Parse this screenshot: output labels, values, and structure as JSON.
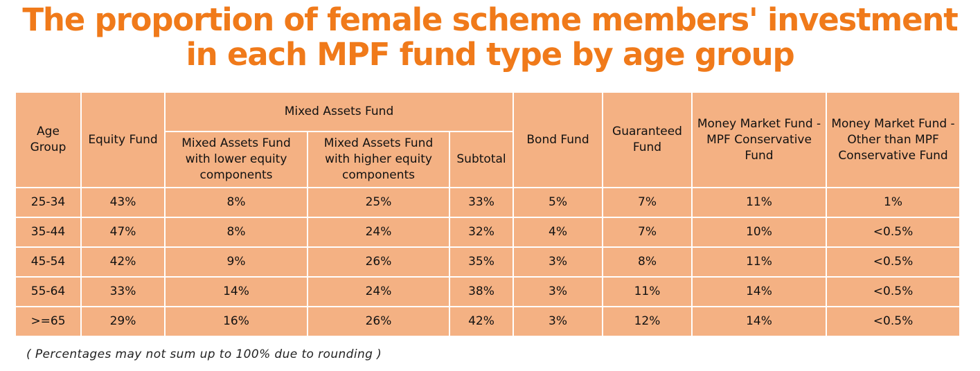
{
  "title": {
    "line1": "The proportion of female scheme members' investment",
    "line2": "in each MPF fund type by age group"
  },
  "colors": {
    "title": "#f07a1a",
    "table_fill": "#f4b183",
    "grid": "#ffffff"
  },
  "chart_data": {
    "type": "table",
    "header": {
      "age_group": "Age Group",
      "equity_fund": "Equity Fund",
      "mixed_assets_fund": "Mixed Assets Fund",
      "mixed_lower": "Mixed Assets Fund with lower equity components",
      "mixed_higher": "Mixed Assets Fund with higher equity components",
      "subtotal": "Subtotal",
      "bond_fund": "Bond Fund",
      "guaranteed_fund": "Guaranteed Fund",
      "mm_mpf": "Money Market Fund - MPF Conservative Fund",
      "mm_other": "Money Market Fund - Other than MPF Conservative Fund"
    },
    "columns": [
      "Age Group",
      "Equity Fund",
      "Mixed Assets Fund with lower equity components",
      "Mixed Assets Fund with higher equity components",
      "Subtotal",
      "Bond Fund",
      "Guaranteed Fund",
      "Money Market Fund - MPF Conservative Fund",
      "Money Market Fund - Other than MPF Conservative Fund"
    ],
    "rows": [
      [
        "25-34",
        "43%",
        "8%",
        "25%",
        "33%",
        "5%",
        "7%",
        "11%",
        "1%"
      ],
      [
        "35-44",
        "47%",
        "8%",
        "24%",
        "32%",
        "4%",
        "7%",
        "10%",
        "<0.5%"
      ],
      [
        "45-54",
        "42%",
        "9%",
        "26%",
        "35%",
        "3%",
        "8%",
        "11%",
        "<0.5%"
      ],
      [
        "55-64",
        "33%",
        "14%",
        "24%",
        "38%",
        "3%",
        "11%",
        "14%",
        "<0.5%"
      ],
      [
        ">=65",
        "29%",
        "16%",
        "26%",
        "42%",
        "3%",
        "12%",
        "14%",
        "<0.5%"
      ]
    ]
  },
  "note": "( Percentages may not sum up to 100% due to rounding )"
}
